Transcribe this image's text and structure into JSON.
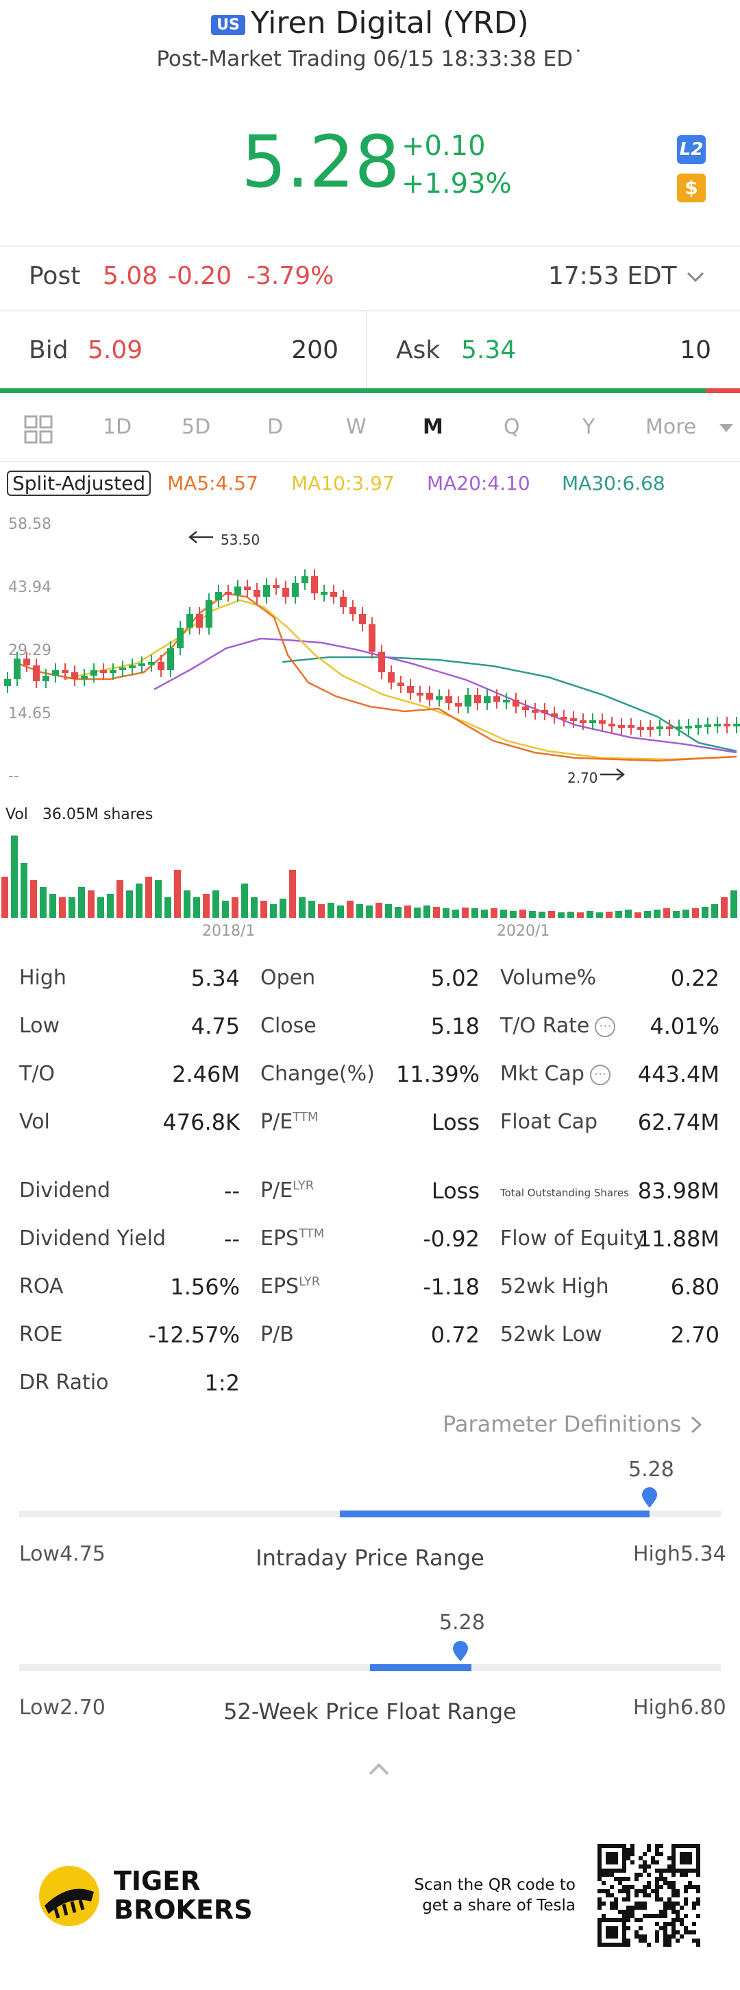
{
  "header": {
    "flag": "US",
    "title": "Yiren Digital (YRD)",
    "subtitle": "Post-Market Trading 06/15 18:33:38 ED˙"
  },
  "quote": {
    "price": "5.28",
    "change": "+0.10",
    "change_pct": "+1.93%",
    "badge_l2": "L2",
    "badge_s": "$"
  },
  "post": {
    "label": "Post",
    "price": "5.08",
    "change": "-0.20",
    "change_pct": "-3.79%",
    "time": "17:53 EDT"
  },
  "bid": {
    "label": "Bid",
    "price": "5.09",
    "size": "200"
  },
  "ask": {
    "label": "Ask",
    "price": "5.34",
    "size": "10"
  },
  "tabs": [
    "1D",
    "5D",
    "D",
    "W",
    "M",
    "Q",
    "Y",
    "More"
  ],
  "active_tab": "M",
  "chart_header": {
    "split": "Split-Adjusted",
    "ma5": "MA5:4.57",
    "ma10": "MA10:3.97",
    "ma20": "MA20:4.10",
    "ma30": "MA30:6.68"
  },
  "colors": {
    "up": "#1fa85b",
    "down": "#e54b4b",
    "accent": "#3d7ee8",
    "ma5": "#e8732d",
    "ma10": "#e8c531",
    "ma20": "#a45fd6",
    "ma30": "#2e9a8c"
  },
  "chart_data": {
    "type": "candlestick",
    "ylim": [
      14.65,
      58.58
    ],
    "y_ticks": [
      "58.58",
      "43.94",
      "29.29",
      "14.65",
      "--"
    ],
    "x_ticks": [
      "2018/1",
      "2020/1"
    ],
    "annotations": [
      "53.50",
      "2.70"
    ],
    "volume_label": "Vol",
    "volume_value": "36.05M shares"
  },
  "stats": {
    "col1": [
      {
        "label": "High",
        "value": "5.34"
      },
      {
        "label": "Low",
        "value": "4.75"
      },
      {
        "label": "T/O",
        "value": "2.46M"
      },
      {
        "label": "Vol",
        "value": "476.8K"
      }
    ],
    "col2": [
      {
        "label": "Open",
        "value": "5.02"
      },
      {
        "label": "Close",
        "value": "5.18"
      },
      {
        "label": "Change(%)",
        "value": "11.39%"
      },
      {
        "label": "P/E",
        "sup": "TTM",
        "value": "Loss"
      }
    ],
    "col3": [
      {
        "label": "Volume%",
        "value": "0.22"
      },
      {
        "label": "T/O Rate",
        "value": "4.01%"
      },
      {
        "label": "Mkt Cap",
        "value": "443.4M"
      },
      {
        "label": "Float Cap",
        "value": "62.74M"
      }
    ],
    "col1b": [
      {
        "label": "Dividend",
        "value": "--"
      },
      {
        "label": "Dividend Yield",
        "value": "--"
      },
      {
        "label": "ROA",
        "value": "1.56%"
      },
      {
        "label": "ROE",
        "value": "-12.57%"
      },
      {
        "label": "DR Ratio",
        "value": "1:2"
      }
    ],
    "col2b": [
      {
        "label": "P/E",
        "sup": "LYR",
        "value": "Loss"
      },
      {
        "label": "EPS",
        "sup": "TTM",
        "value": "-0.92"
      },
      {
        "label": "EPS",
        "sup": "LYR",
        "value": "-1.18"
      },
      {
        "label": "P/B",
        "value": "0.72"
      }
    ],
    "col3b": [
      {
        "label": "Total Outstanding Shares",
        "value": "83.98M"
      },
      {
        "label": "Flow of Equity",
        "value": "11.88M"
      },
      {
        "label": "52wk High",
        "value": "6.80"
      },
      {
        "label": "52wk Low",
        "value": "2.70"
      }
    ]
  },
  "param_link": "Parameter Definitions",
  "intraday": {
    "current": "5.28",
    "low_label": "Low",
    "low": "4.75",
    "title": "Intraday Price Range",
    "high_label": "High",
    "high": "5.34"
  },
  "week52": {
    "current": "5.28",
    "low_label": "Low",
    "low": "2.70",
    "title": "52-Week Price Float Range",
    "high_label": "High",
    "high": "6.80"
  },
  "footer": {
    "brand_line1": "TIGER",
    "brand_line2": "BROKERS",
    "qr_text1": "Scan the QR code to",
    "qr_text2": "get a share of Tesla"
  }
}
